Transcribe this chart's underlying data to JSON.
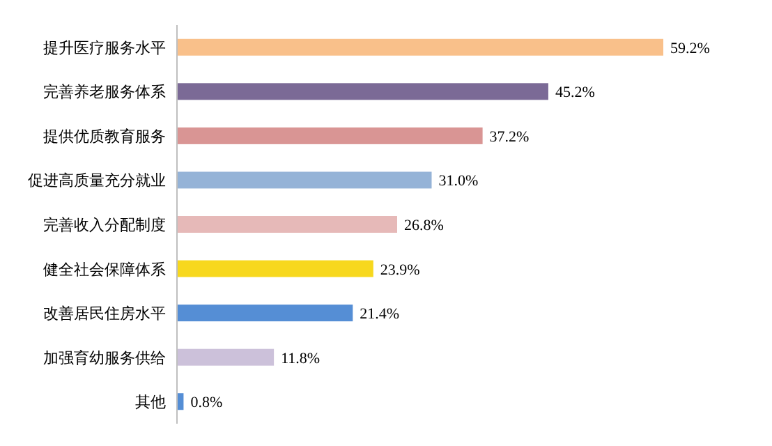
{
  "chart_data": {
    "type": "bar",
    "orientation": "horizontal",
    "categories": [
      "提升医疗服务水平",
      "完善养老服务体系",
      "提供优质教育服务",
      "促进高质量充分就业",
      "完善收入分配制度",
      "健全社会保障体系",
      "改善居民住房水平",
      "加强育幼服务供给",
      "其他"
    ],
    "values": [
      59.2,
      45.2,
      37.2,
      31.0,
      26.8,
      23.9,
      21.4,
      11.8,
      0.8
    ],
    "value_labels": [
      "59.2%",
      "45.2%",
      "37.2%",
      "31.0%",
      "26.8%",
      "23.9%",
      "21.4%",
      "11.8%",
      "0.8%"
    ],
    "colors": [
      "#f9c08a",
      "#7b6a96",
      "#d99594",
      "#95b3d7",
      "#e6b9b8",
      "#f7d81e",
      "#558ed5",
      "#ccc1da",
      "#558ed5"
    ]
  }
}
